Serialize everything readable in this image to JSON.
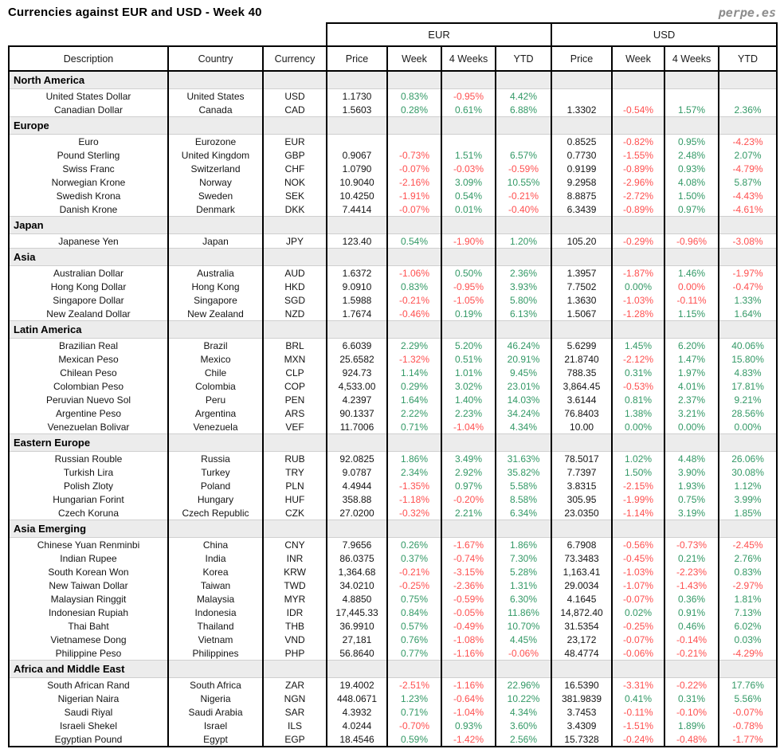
{
  "page": {
    "title": "Currencies against EUR and USD - Week 40",
    "brand": "perpe.es"
  },
  "colors": {
    "positive": "#339966",
    "negative": "#FF5050"
  },
  "chart_data": {
    "type": "table",
    "title": "Currencies against EUR and USD - Week 40",
    "group_headers": [
      "EUR",
      "USD"
    ],
    "columns": [
      "Description",
      "Country",
      "Currency",
      "Price",
      "Week",
      "4 Weeks",
      "YTD",
      "Price",
      "Week",
      "4 Weeks",
      "YTD"
    ],
    "sections": [
      {
        "name": "North America",
        "rows": [
          {
            "desc": "United States Dollar",
            "country": "United States",
            "code": "USD",
            "eur": [
              "1.1730",
              "0.83%",
              "-0.95%",
              "4.42%"
            ],
            "usd": [
              "",
              "",
              "",
              ""
            ]
          },
          {
            "desc": "Canadian Dollar",
            "country": "Canada",
            "code": "CAD",
            "eur": [
              "1.5603",
              "0.28%",
              "0.61%",
              "6.88%"
            ],
            "usd": [
              "1.3302",
              "-0.54%",
              "1.57%",
              "2.36%"
            ]
          }
        ]
      },
      {
        "name": "Europe",
        "rows": [
          {
            "desc": "Euro",
            "country": "Eurozone",
            "code": "EUR",
            "eur": [
              "",
              "",
              "",
              ""
            ],
            "usd": [
              "0.8525",
              "-0.82%",
              "0.95%",
              "-4.23%"
            ]
          },
          {
            "desc": "Pound Sterling",
            "country": "United Kingdom",
            "code": "GBP",
            "eur": [
              "0.9067",
              "-0.73%",
              "1.51%",
              "6.57%"
            ],
            "usd": [
              "0.7730",
              "-1.55%",
              "2.48%",
              "2.07%"
            ]
          },
          {
            "desc": "Swiss Franc",
            "country": "Switzerland",
            "code": "CHF",
            "eur": [
              "1.0790",
              "-0.07%",
              "-0.03%",
              "-0.59%"
            ],
            "usd": [
              "0.9199",
              "-0.89%",
              "0.93%",
              "-4.79%"
            ]
          },
          {
            "desc": "Norwegian Krone",
            "country": "Norway",
            "code": "NOK",
            "eur": [
              "10.9040",
              "-2.16%",
              "3.09%",
              "10.55%"
            ],
            "usd": [
              "9.2958",
              "-2.96%",
              "4.08%",
              "5.87%"
            ]
          },
          {
            "desc": "Swedish Krona",
            "country": "Sweden",
            "code": "SEK",
            "eur": [
              "10.4250",
              "-1.91%",
              "0.54%",
              "-0.21%"
            ],
            "usd": [
              "8.8875",
              "-2.72%",
              "1.50%",
              "-4.43%"
            ]
          },
          {
            "desc": "Danish Krone",
            "country": "Denmark",
            "code": "DKK",
            "eur": [
              "7.4414",
              "-0.07%",
              "0.01%",
              "-0.40%"
            ],
            "usd": [
              "6.3439",
              "-0.89%",
              "0.97%",
              "-4.61%"
            ]
          }
        ]
      },
      {
        "name": "Japan",
        "rows": [
          {
            "desc": "Japanese Yen",
            "country": "Japan",
            "code": "JPY",
            "eur": [
              "123.40",
              "0.54%",
              "-1.90%",
              "1.20%"
            ],
            "usd": [
              "105.20",
              "-0.29%",
              "-0.96%",
              "-3.08%"
            ]
          }
        ]
      },
      {
        "name": "Asia",
        "rows": [
          {
            "desc": "Australian Dollar",
            "country": "Australia",
            "code": "AUD",
            "eur": [
              "1.6372",
              "-1.06%",
              "0.50%",
              "2.36%"
            ],
            "usd": [
              "1.3957",
              "-1.87%",
              "1.46%",
              "-1.97%"
            ]
          },
          {
            "desc": "Hong Kong Dollar",
            "country": "Hong Kong",
            "code": "HKD",
            "eur": [
              "9.0910",
              "0.83%",
              "-0.95%",
              "3.93%"
            ],
            "usd": [
              "7.7502",
              "0.00%",
              "0.00%",
              "-0.47%"
            ],
            "uc": {
              "2": "neg"
            }
          },
          {
            "desc": "Singapore Dollar",
            "country": "Singapore",
            "code": "SGD",
            "eur": [
              "1.5988",
              "-0.21%",
              "-1.05%",
              "5.80%"
            ],
            "usd": [
              "1.3630",
              "-1.03%",
              "-0.11%",
              "1.33%"
            ]
          },
          {
            "desc": "New Zealand Dollar",
            "country": "New Zealand",
            "code": "NZD",
            "eur": [
              "1.7674",
              "-0.46%",
              "0.19%",
              "6.13%"
            ],
            "usd": [
              "1.5067",
              "-1.28%",
              "1.15%",
              "1.64%"
            ]
          }
        ]
      },
      {
        "name": "Latin America",
        "rows": [
          {
            "desc": "Brazilian Real",
            "country": "Brazil",
            "code": "BRL",
            "eur": [
              "6.6039",
              "2.29%",
              "5.20%",
              "46.24%"
            ],
            "usd": [
              "5.6299",
              "1.45%",
              "6.20%",
              "40.06%"
            ]
          },
          {
            "desc": "Mexican Peso",
            "country": "Mexico",
            "code": "MXN",
            "eur": [
              "25.6582",
              "-1.32%",
              "0.51%",
              "20.91%"
            ],
            "usd": [
              "21.8740",
              "-2.12%",
              "1.47%",
              "15.80%"
            ]
          },
          {
            "desc": "Chilean Peso",
            "country": "Chile",
            "code": "CLP",
            "eur": [
              "924.73",
              "1.14%",
              "1.01%",
              "9.45%"
            ],
            "usd": [
              "788.35",
              "0.31%",
              "1.97%",
              "4.83%"
            ]
          },
          {
            "desc": "Colombian Peso",
            "country": "Colombia",
            "code": "COP",
            "eur": [
              "4,533.00",
              "0.29%",
              "3.02%",
              "23.01%"
            ],
            "usd": [
              "3,864.45",
              "-0.53%",
              "4.01%",
              "17.81%"
            ]
          },
          {
            "desc": "Peruvian Nuevo Sol",
            "country": "Peru",
            "code": "PEN",
            "eur": [
              "4.2397",
              "1.64%",
              "1.40%",
              "14.03%"
            ],
            "usd": [
              "3.6144",
              "0.81%",
              "2.37%",
              "9.21%"
            ]
          },
          {
            "desc": "Argentine Peso",
            "country": "Argentina",
            "code": "ARS",
            "eur": [
              "90.1337",
              "2.22%",
              "2.23%",
              "34.24%"
            ],
            "usd": [
              "76.8403",
              "1.38%",
              "3.21%",
              "28.56%"
            ]
          },
          {
            "desc": "Venezuelan Bolivar",
            "country": "Venezuela",
            "code": "VEF",
            "eur": [
              "11.7006",
              "0.71%",
              "-1.04%",
              "4.34%"
            ],
            "usd": [
              "10.00",
              "0.00%",
              "0.00%",
              "0.00%"
            ]
          }
        ]
      },
      {
        "name": "Eastern Europe",
        "rows": [
          {
            "desc": "Russian Rouble",
            "country": "Russia",
            "code": "RUB",
            "eur": [
              "92.0825",
              "1.86%",
              "3.49%",
              "31.63%"
            ],
            "usd": [
              "78.5017",
              "1.02%",
              "4.48%",
              "26.06%"
            ]
          },
          {
            "desc": "Turkish Lira",
            "country": "Turkey",
            "code": "TRY",
            "eur": [
              "9.0787",
              "2.34%",
              "2.92%",
              "35.82%"
            ],
            "usd": [
              "7.7397",
              "1.50%",
              "3.90%",
              "30.08%"
            ]
          },
          {
            "desc": "Polish Zloty",
            "country": "Poland",
            "code": "PLN",
            "eur": [
              "4.4944",
              "-1.35%",
              "0.97%",
              "5.58%"
            ],
            "usd": [
              "3.8315",
              "-2.15%",
              "1.93%",
              "1.12%"
            ]
          },
          {
            "desc": "Hungarian Forint",
            "country": "Hungary",
            "code": "HUF",
            "eur": [
              "358.88",
              "-1.18%",
              "-0.20%",
              "8.58%"
            ],
            "usd": [
              "305.95",
              "-1.99%",
              "0.75%",
              "3.99%"
            ]
          },
          {
            "desc": "Czech Koruna",
            "country": "Czech Republic",
            "code": "CZK",
            "eur": [
              "27.0200",
              "-0.32%",
              "2.21%",
              "6.34%"
            ],
            "usd": [
              "23.0350",
              "-1.14%",
              "3.19%",
              "1.85%"
            ]
          }
        ]
      },
      {
        "name": "Asia Emerging",
        "rows": [
          {
            "desc": "Chinese Yuan Renminbi",
            "country": "China",
            "code": "CNY",
            "eur": [
              "7.9656",
              "0.26%",
              "-1.67%",
              "1.86%"
            ],
            "usd": [
              "6.7908",
              "-0.56%",
              "-0.73%",
              "-2.45%"
            ]
          },
          {
            "desc": "Indian Rupee",
            "country": "India",
            "code": "INR",
            "eur": [
              "86.0375",
              "0.37%",
              "-0.74%",
              "7.30%"
            ],
            "usd": [
              "73.3483",
              "-0.45%",
              "0.21%",
              "2.76%"
            ]
          },
          {
            "desc": "South Korean Won",
            "country": "Korea",
            "code": "KRW",
            "eur": [
              "1,364.68",
              "-0.21%",
              "-3.15%",
              "5.28%"
            ],
            "usd": [
              "1,163.41",
              "-1.03%",
              "-2.23%",
              "0.83%"
            ]
          },
          {
            "desc": "New Taiwan Dollar",
            "country": "Taiwan",
            "code": "TWD",
            "eur": [
              "34.0210",
              "-0.25%",
              "-2.36%",
              "1.31%"
            ],
            "usd": [
              "29.0034",
              "-1.07%",
              "-1.43%",
              "-2.97%"
            ]
          },
          {
            "desc": "Malaysian Ringgit",
            "country": "Malaysia",
            "code": "MYR",
            "eur": [
              "4.8850",
              "0.75%",
              "-0.59%",
              "6.30%"
            ],
            "usd": [
              "4.1645",
              "-0.07%",
              "0.36%",
              "1.81%"
            ]
          },
          {
            "desc": "Indonesian Rupiah",
            "country": "Indonesia",
            "code": "IDR",
            "eur": [
              "17,445.33",
              "0.84%",
              "-0.05%",
              "11.86%"
            ],
            "usd": [
              "14,872.40",
              "0.02%",
              "0.91%",
              "7.13%"
            ]
          },
          {
            "desc": "Thai Baht",
            "country": "Thailand",
            "code": "THB",
            "eur": [
              "36.9910",
              "0.57%",
              "-0.49%",
              "10.70%"
            ],
            "usd": [
              "31.5354",
              "-0.25%",
              "0.46%",
              "6.02%"
            ]
          },
          {
            "desc": "Vietnamese Dong",
            "country": "Vietnam",
            "code": "VND",
            "eur": [
              "27,181",
              "0.76%",
              "-1.08%",
              "4.45%"
            ],
            "usd": [
              "23,172",
              "-0.07%",
              "-0.14%",
              "0.03%"
            ]
          },
          {
            "desc": "Philippine Peso",
            "country": "Philippines",
            "code": "PHP",
            "eur": [
              "56.8640",
              "0.77%",
              "-1.16%",
              "-0.06%"
            ],
            "usd": [
              "48.4774",
              "-0.06%",
              "-0.21%",
              "-4.29%"
            ]
          }
        ]
      },
      {
        "name": "Africa and Middle East",
        "rows": [
          {
            "desc": "South African Rand",
            "country": "South Africa",
            "code": "ZAR",
            "eur": [
              "19.4002",
              "-2.51%",
              "-1.16%",
              "22.96%"
            ],
            "usd": [
              "16.5390",
              "-3.31%",
              "-0.22%",
              "17.76%"
            ]
          },
          {
            "desc": "Nigerian Naira",
            "country": "Nigeria",
            "code": "NGN",
            "eur": [
              "448.0671",
              "1.23%",
              "-0.64%",
              "10.22%"
            ],
            "usd": [
              "381.9839",
              "0.41%",
              "0.31%",
              "5.56%"
            ]
          },
          {
            "desc": "Saudi Riyal",
            "country": "Saudi Arabia",
            "code": "SAR",
            "eur": [
              "4.3932",
              "0.71%",
              "-1.04%",
              "4.34%"
            ],
            "usd": [
              "3.7453",
              "-0.11%",
              "-0.10%",
              "-0.07%"
            ]
          },
          {
            "desc": "Israeli Shekel",
            "country": "Israel",
            "code": "ILS",
            "eur": [
              "4.0244",
              "-0.70%",
              "0.93%",
              "3.60%"
            ],
            "usd": [
              "3.4309",
              "-1.51%",
              "1.89%",
              "-0.78%"
            ]
          },
          {
            "desc": "Egyptian Pound",
            "country": "Egypt",
            "code": "EGP",
            "eur": [
              "18.4546",
              "0.59%",
              "-1.42%",
              "2.56%"
            ],
            "usd": [
              "15.7328",
              "-0.24%",
              "-0.48%",
              "-1.77%"
            ]
          }
        ]
      }
    ]
  }
}
